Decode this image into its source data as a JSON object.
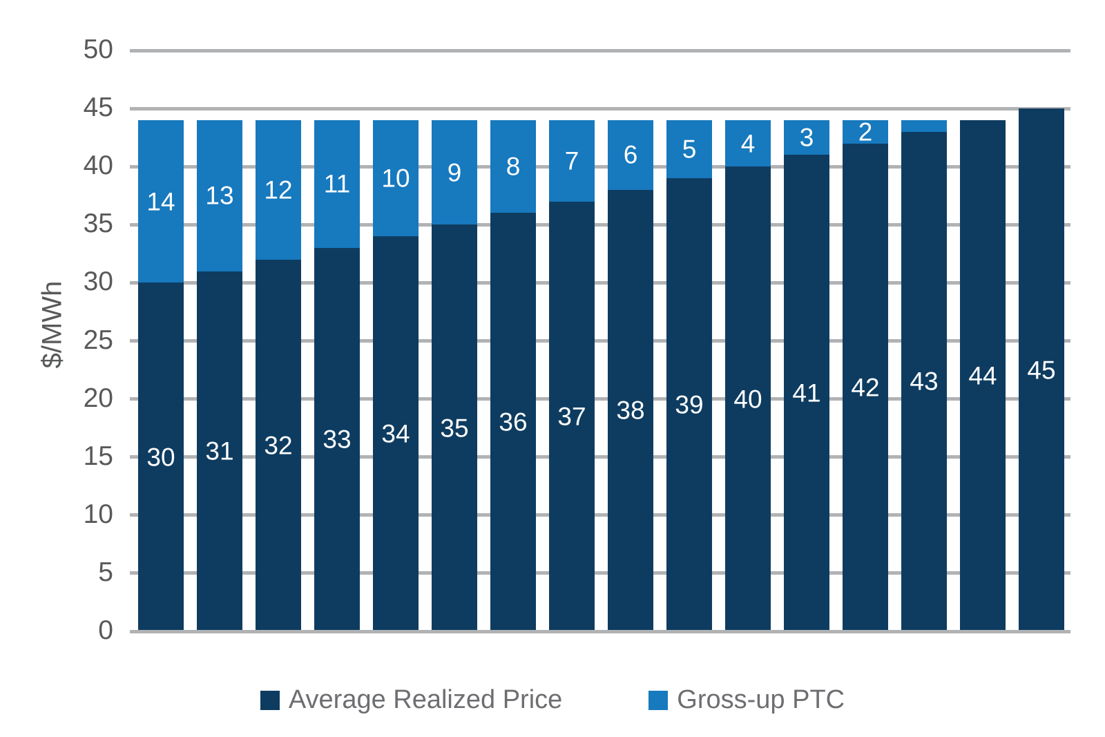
{
  "chart_data": {
    "type": "bar",
    "stacked": true,
    "title": "",
    "xlabel": "",
    "ylabel": "$/MWh",
    "ylim": [
      0,
      50
    ],
    "yticks": [
      0,
      5,
      10,
      15,
      20,
      25,
      30,
      35,
      40,
      45,
      50
    ],
    "grid": true,
    "legend_position": "bottom",
    "x_tick_labels_shown": false,
    "series": [
      {
        "name": "Average Realized Price",
        "color": "#0E3C60",
        "values": [
          30,
          31,
          32,
          33,
          34,
          35,
          36,
          37,
          38,
          39,
          40,
          41,
          42,
          43,
          44,
          45
        ],
        "label_min_value": 0
      },
      {
        "name": "Gross-up PTC",
        "color": "#1779BE",
        "values": [
          14,
          13,
          12,
          11,
          10,
          9,
          8,
          7,
          6,
          5,
          4,
          3,
          2,
          1,
          0,
          0
        ],
        "label_min_value": 2
      }
    ],
    "segment_label_color": "#FFFFFF"
  },
  "colors": {
    "background": "#FFFFFF",
    "gridline": "#B1B2B4",
    "tick_label": "#58595B",
    "axis_title": "#58595B",
    "legend_text": "#6D6E71"
  },
  "legend": {
    "items": [
      {
        "label": "Average Realized Price",
        "swatch_color": "#0E3C60"
      },
      {
        "label": "Gross-up PTC",
        "swatch_color": "#1779BE"
      }
    ]
  }
}
